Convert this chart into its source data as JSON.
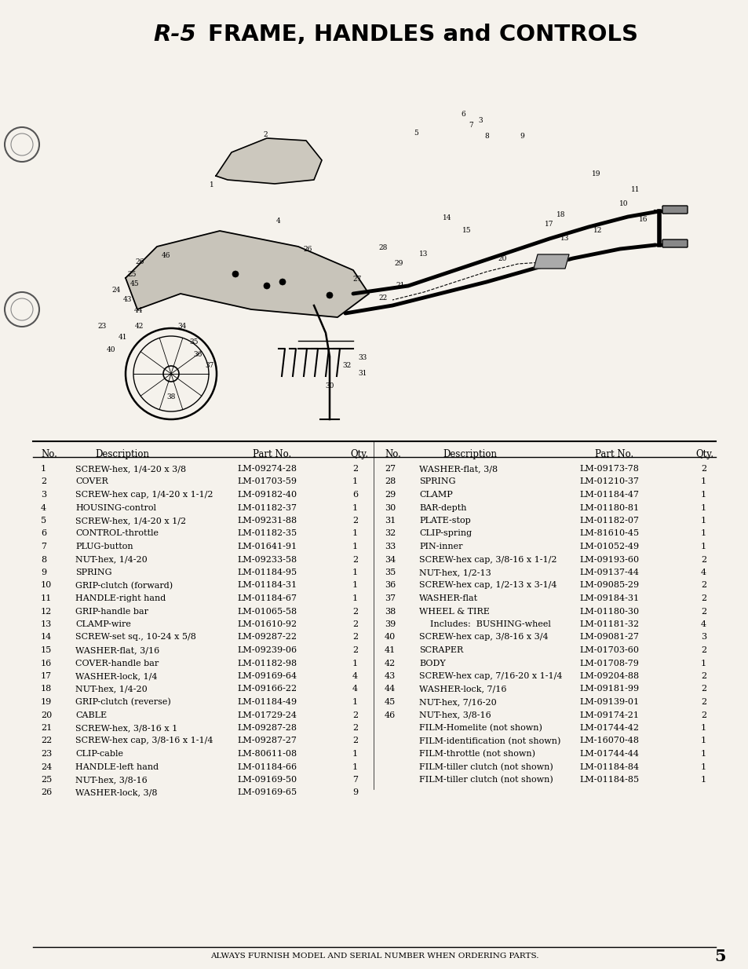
{
  "title_prefix": "R-5",
  "title_main": "FRAME, HANDLES and CONTROLS",
  "bg_color": "#f5f2ec",
  "page_number": "5",
  "footer_text": "ALWAYS FURNISH MODEL AND SERIAL NUMBER WHEN ORDERING PARTS.",
  "parts_left": [
    [
      "1",
      "SCREW-hex, 1/4-20 x 3/8",
      "LM-09274-28",
      "2"
    ],
    [
      "2",
      "COVER",
      "LM-01703-59",
      "1"
    ],
    [
      "3",
      "SCREW-hex cap, 1/4-20 x 1-1/2",
      "LM-09182-40",
      "6"
    ],
    [
      "4",
      "HOUSING-control",
      "LM-01182-37",
      "1"
    ],
    [
      "5",
      "SCREW-hex, 1/4-20 x 1/2",
      "LM-09231-88",
      "2"
    ],
    [
      "6",
      "CONTROL-throttle",
      "LM-01182-35",
      "1"
    ],
    [
      "7",
      "PLUG-button",
      "LM-01641-91",
      "1"
    ],
    [
      "8",
      "NUT-hex, 1/4-20",
      "LM-09233-58",
      "2"
    ],
    [
      "9",
      "SPRING",
      "LM-01184-95",
      "1"
    ],
    [
      "10",
      "GRIP-clutch (forward)",
      "LM-01184-31",
      "1"
    ],
    [
      "11",
      "HANDLE-right hand",
      "LM-01184-67",
      "1"
    ],
    [
      "12",
      "GRIP-handle bar",
      "LM-01065-58",
      "2"
    ],
    [
      "13",
      "CLAMP-wire",
      "LM-01610-92",
      "2"
    ],
    [
      "14",
      "SCREW-set sq., 10-24 x 5/8",
      "LM-09287-22",
      "2"
    ],
    [
      "15",
      "WASHER-flat, 3/16",
      "LM-09239-06",
      "2"
    ],
    [
      "16",
      "COVER-handle bar",
      "LM-01182-98",
      "1"
    ],
    [
      "17",
      "WASHER-lock, 1/4",
      "LM-09169-64",
      "4"
    ],
    [
      "18",
      "NUT-hex, 1/4-20",
      "LM-09166-22",
      "4"
    ],
    [
      "19",
      "GRIP-clutch (reverse)",
      "LM-01184-49",
      "1"
    ],
    [
      "20",
      "CABLE",
      "LM-01729-24",
      "2"
    ],
    [
      "21",
      "SCREW-hex, 3/8-16 x 1",
      "LM-09287-28",
      "2"
    ],
    [
      "22",
      "SCREW-hex cap, 3/8-16 x 1-1/4",
      "LM-09287-27",
      "2"
    ],
    [
      "23",
      "CLIP-cable",
      "LM-80611-08",
      "1"
    ],
    [
      "24",
      "HANDLE-left hand",
      "LM-01184-66",
      "1"
    ],
    [
      "25",
      "NUT-hex, 3/8-16",
      "LM-09169-50",
      "7"
    ],
    [
      "26",
      "WASHER-lock, 3/8",
      "LM-09169-65",
      "9"
    ]
  ],
  "parts_right": [
    [
      "27",
      "WASHER-flat, 3/8",
      "LM-09173-78",
      "2"
    ],
    [
      "28",
      "SPRING",
      "LM-01210-37",
      "1"
    ],
    [
      "29",
      "CLAMP",
      "LM-01184-47",
      "1"
    ],
    [
      "30",
      "BAR-depth",
      "LM-01180-81",
      "1"
    ],
    [
      "31",
      "PLATE-stop",
      "LM-01182-07",
      "1"
    ],
    [
      "32",
      "CLIP-spring",
      "LM-81610-45",
      "1"
    ],
    [
      "33",
      "PIN-inner",
      "LM-01052-49",
      "1"
    ],
    [
      "34",
      "SCREW-hex cap, 3/8-16 x 1-1/2",
      "LM-09193-60",
      "2"
    ],
    [
      "35",
      "NUT-hex, 1/2-13",
      "LM-09137-44",
      "4"
    ],
    [
      "36",
      "SCREW-hex cap, 1/2-13 x 3-1/4",
      "LM-09085-29",
      "2"
    ],
    [
      "37",
      "WASHER-flat",
      "LM-09184-31",
      "2"
    ],
    [
      "38",
      "WHEEL & TIRE",
      "LM-01180-30",
      "2"
    ],
    [
      "39",
      "    Includes:  BUSHING-wheel",
      "LM-01181-32",
      "4"
    ],
    [
      "40",
      "SCREW-hex cap, 3/8-16 x 3/4",
      "LM-09081-27",
      "3"
    ],
    [
      "41",
      "SCRAPER",
      "LM-01703-60",
      "2"
    ],
    [
      "42",
      "BODY",
      "LM-01708-79",
      "1"
    ],
    [
      "43",
      "SCREW-hex cap, 7/16-20 x 1-1/4",
      "LM-09204-88",
      "2"
    ],
    [
      "44",
      "WASHER-lock, 7/16",
      "LM-09181-99",
      "2"
    ],
    [
      "45",
      "NUT-hex, 7/16-20",
      "LM-09139-01",
      "2"
    ],
    [
      "46",
      "NUT-hex, 3/8-16",
      "LM-09174-21",
      "2"
    ],
    [
      "",
      "FILM-Homelite (not shown)",
      "LM-01744-42",
      "1"
    ],
    [
      "",
      "FILM-identification (not shown)",
      "LM-16070-48",
      "1"
    ],
    [
      "",
      "FILM-throttle (not shown)",
      "LM-01744-44",
      "1"
    ],
    [
      "",
      "FILM-tiller clutch (not shown)",
      "LM-01184-84",
      "1"
    ],
    [
      "",
      "FILM-tiller clutch (not shown)",
      "LM-01184-85",
      "1"
    ]
  ]
}
